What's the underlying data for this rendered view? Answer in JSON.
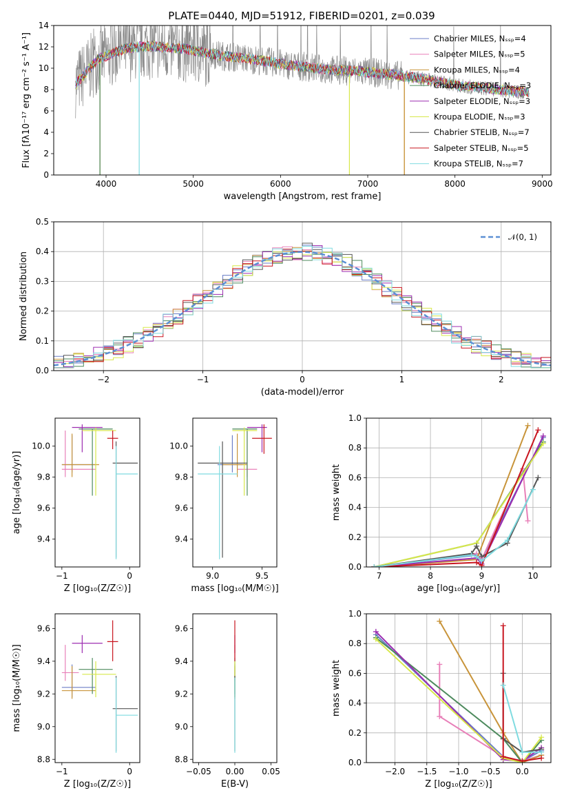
{
  "figure": {
    "title": "PLATE=0440, MJD=51912, FIBERID=0201, z=0.039"
  },
  "chart_data": [
    {
      "id": "spectrum",
      "type": "line",
      "xlabel": "wavelength [Angstrom, rest frame]",
      "ylabel": "Flux [fλ10⁻¹⁷ erg cm⁻² s⁻¹ A⁻¹]",
      "xlim": [
        3400,
        9100
      ],
      "ylim": [
        0,
        14
      ],
      "xticks": [
        4000,
        5000,
        6000,
        7000,
        8000,
        9000
      ],
      "yticks": [
        0,
        2,
        4,
        6,
        8,
        10,
        12,
        14
      ],
      "legend_position": "top-right",
      "data_range": [
        3650,
        8850
      ],
      "continuum": {
        "x": [
          3650,
          3900,
          4200,
          4500,
          4900,
          5300,
          5700,
          6100,
          6500,
          6900,
          7300,
          7700,
          8100,
          8500,
          8850
        ],
        "y": [
          8.5,
          10.8,
          11.8,
          12.1,
          11.8,
          11.2,
          10.8,
          10.3,
          9.9,
          9.7,
          9.4,
          8.9,
          8.3,
          8.0,
          7.7
        ]
      },
      "series": [
        {
          "name": "Chabrier MILES, N_SSP=4",
          "color": "#6b7ec7"
        },
        {
          "name": "Salpeter MILES, N_SSP=5",
          "color": "#e87fb8"
        },
        {
          "name": "Kroupa MILES, N_SSP=4",
          "color": "#c8943a"
        },
        {
          "name": "Chabrier ELODIE, N_SSP=3",
          "color": "#4d8a5d"
        },
        {
          "name": "Salpeter ELODIE, N_SSP=3",
          "color": "#9c2cb0"
        },
        {
          "name": "Kroupa ELODIE, N_SSP=3",
          "color": "#d7e84a"
        },
        {
          "name": "Chabrier STELIB, N_SSP=7",
          "color": "#555555"
        },
        {
          "name": "Salpeter STELIB, N_SSP=5",
          "color": "#c8141e"
        },
        {
          "name": "Kroupa STELIB, N_SSP=7",
          "color": "#7fdbe0"
        }
      ],
      "data_color": "#8a8a8a"
    },
    {
      "id": "residual-histogram",
      "type": "bar",
      "xlabel": "(data-model)/error",
      "ylabel": "Normed distribution",
      "xlim": [
        -2.5,
        2.5
      ],
      "ylim": [
        0,
        0.5
      ],
      "xticks": [
        -2,
        -1,
        0,
        1,
        2
      ],
      "yticks": [
        0.0,
        0.1,
        0.2,
        0.3,
        0.4,
        0.5
      ],
      "bin_width": 0.1,
      "bins_start": -2.5,
      "reference_curve": {
        "name": "N(0, 1)",
        "label_text": "𝒩(0, 1)",
        "mean": 0,
        "sigma": 1,
        "color": "#5b8fd4"
      },
      "legend_position": "top-right"
    },
    {
      "id": "age-vs-Z",
      "type": "scatter",
      "xlabel": "Z [log₁₀(Z/Z☉)]",
      "ylabel": "age  [log₁₀(age/yr)]",
      "xlim": [
        -1.1,
        0.15
      ],
      "ylim": [
        9.22,
        10.18
      ],
      "xticks": [
        -1,
        0
      ],
      "yticks": [
        9.4,
        9.6,
        9.8,
        10.0
      ],
      "points": [
        {
          "series": 0,
          "x": -0.85,
          "y": 9.88,
          "xlo": -1.0,
          "xhi": -0.5,
          "ylo": 9.83,
          "yhi": 10.07
        },
        {
          "series": 1,
          "x": -0.95,
          "y": 9.85,
          "xlo": -1.0,
          "xhi": -0.5,
          "ylo": 9.8,
          "yhi": 10.1
        },
        {
          "series": 2,
          "x": -0.85,
          "y": 9.88,
          "xlo": -1.0,
          "xhi": -0.45,
          "ylo": 9.8,
          "yhi": 10.08
        },
        {
          "series": 3,
          "x": -0.55,
          "y": 10.11,
          "xlo": -0.75,
          "xhi": -0.25,
          "ylo": 9.68,
          "yhi": 10.11
        },
        {
          "series": 4,
          "x": -0.7,
          "y": 10.12,
          "xlo": -0.85,
          "xhi": -0.4,
          "ylo": 9.96,
          "yhi": 10.14
        },
        {
          "series": 5,
          "x": -0.5,
          "y": 10.1,
          "xlo": -0.7,
          "xhi": -0.2,
          "ylo": 9.68,
          "yhi": 10.12
        },
        {
          "series": 6,
          "x": -0.2,
          "y": 9.89,
          "xlo": -0.25,
          "xhi": 0.12,
          "ylo": 9.28,
          "yhi": 10.03
        },
        {
          "series": 7,
          "x": -0.25,
          "y": 10.05,
          "xlo": -0.33,
          "xhi": -0.17,
          "ylo": 9.98,
          "yhi": 10.1
        },
        {
          "series": 8,
          "x": -0.2,
          "y": 9.82,
          "xlo": -0.2,
          "xhi": 0.12,
          "ylo": 9.27,
          "yhi": 10.0
        }
      ]
    },
    {
      "id": "age-vs-mass",
      "type": "scatter",
      "xlabel": "mass [log₁₀(M/M☉)]",
      "ylabel": "",
      "xlim": [
        8.8,
        9.65
      ],
      "ylim": [
        9.22,
        10.18
      ],
      "xticks": [
        9.0,
        9.5
      ],
      "yticks": [
        9.4,
        9.6,
        9.8,
        10.0
      ],
      "points": [
        {
          "series": 0,
          "x": 9.2,
          "y": 9.88,
          "xlo": 9.05,
          "xhi": 9.3,
          "ylo": 9.83,
          "yhi": 10.07
        },
        {
          "series": 1,
          "x": 9.35,
          "y": 9.85,
          "xlo": 9.25,
          "xhi": 9.45,
          "ylo": 9.8,
          "yhi": 10.1
        },
        {
          "series": 2,
          "x": 9.25,
          "y": 9.88,
          "xlo": 9.1,
          "xhi": 9.35,
          "ylo": 9.8,
          "yhi": 10.08
        },
        {
          "series": 3,
          "x": 9.35,
          "y": 10.11,
          "xlo": 9.2,
          "xhi": 9.45,
          "ylo": 9.68,
          "yhi": 10.11
        },
        {
          "series": 4,
          "x": 9.5,
          "y": 10.12,
          "xlo": 9.35,
          "xhi": 9.55,
          "ylo": 9.96,
          "yhi": 10.14
        },
        {
          "series": 5,
          "x": 9.32,
          "y": 10.1,
          "xlo": 9.2,
          "xhi": 9.45,
          "ylo": 9.68,
          "yhi": 10.12
        },
        {
          "series": 6,
          "x": 9.1,
          "y": 9.89,
          "xlo": 8.85,
          "xhi": 9.35,
          "ylo": 9.28,
          "yhi": 10.03
        },
        {
          "series": 7,
          "x": 9.52,
          "y": 10.05,
          "xlo": 9.4,
          "xhi": 9.6,
          "ylo": 9.95,
          "yhi": 10.14
        },
        {
          "series": 8,
          "x": 9.07,
          "y": 9.82,
          "xlo": 8.85,
          "xhi": 9.25,
          "ylo": 9.27,
          "yhi": 10.0
        }
      ]
    },
    {
      "id": "weight-vs-age",
      "type": "line",
      "xlabel": "age  [log₁₀(age/yr)]",
      "ylabel": "mass weight",
      "xlim": [
        6.75,
        10.35
      ],
      "ylim": [
        0,
        1.0
      ],
      "xticks": [
        7,
        8,
        9,
        10
      ],
      "yticks": [
        0.0,
        0.2,
        0.4,
        0.6,
        0.8,
        1.0
      ],
      "series": [
        {
          "series": 0,
          "x": [
            6.9,
            8.9,
            9.0,
            10.2
          ],
          "y": [
            0.0,
            0.08,
            0.05,
            0.87
          ]
        },
        {
          "series": 1,
          "x": [
            6.9,
            8.9,
            9.0,
            9.8,
            9.9
          ],
          "y": [
            0.0,
            0.09,
            0.05,
            0.66,
            0.31
          ]
        },
        {
          "series": 2,
          "x": [
            6.9,
            8.9,
            9.9
          ],
          "y": [
            0.0,
            0.05,
            0.95
          ]
        },
        {
          "series": 3,
          "x": [
            6.9,
            8.9,
            10.2
          ],
          "y": [
            0.0,
            0.16,
            0.84
          ]
        },
        {
          "series": 4,
          "x": [
            6.9,
            8.9,
            9.0,
            10.2
          ],
          "y": [
            0.0,
            0.06,
            0.02,
            0.88
          ]
        },
        {
          "series": 5,
          "x": [
            6.9,
            8.9,
            10.2
          ],
          "y": [
            0.0,
            0.16,
            0.83
          ]
        },
        {
          "series": 6,
          "x": [
            6.9,
            8.8,
            8.9,
            9.0,
            9.5,
            10.1
          ],
          "y": [
            0.0,
            0.09,
            0.14,
            0.07,
            0.16,
            0.6
          ]
        },
        {
          "series": 7,
          "x": [
            6.9,
            8.9,
            9.0,
            10.1
          ],
          "y": [
            0.0,
            0.03,
            0.01,
            0.92
          ]
        },
        {
          "series": 8,
          "x": [
            6.9,
            8.8,
            8.9,
            9.0,
            9.5,
            10.0
          ],
          "y": [
            0.0,
            0.08,
            0.07,
            0.04,
            0.18,
            0.52
          ]
        }
      ]
    },
    {
      "id": "mass-vs-Z",
      "type": "scatter",
      "xlabel": "Z [log₁₀(Z/Z☉)]",
      "ylabel": "mass [log₁₀(M/M☉)]",
      "xlim": [
        -1.1,
        0.15
      ],
      "ylim": [
        8.78,
        9.69
      ],
      "xticks": [
        -1,
        0
      ],
      "yticks": [
        8.8,
        9.0,
        9.2,
        9.4,
        9.6
      ],
      "points": [
        {
          "series": 0,
          "x": -0.85,
          "y": 9.24,
          "xlo": -1.0,
          "xhi": -0.5,
          "ylo": 9.18,
          "yhi": 9.38
        },
        {
          "series": 1,
          "x": -0.95,
          "y": 9.33,
          "xlo": -1.0,
          "xhi": -0.75,
          "ylo": 9.28,
          "yhi": 9.5
        },
        {
          "series": 2,
          "x": -0.85,
          "y": 9.22,
          "xlo": -1.0,
          "xhi": -0.5,
          "ylo": 9.17,
          "yhi": 9.37
        },
        {
          "series": 3,
          "x": -0.55,
          "y": 9.35,
          "xlo": -0.75,
          "xhi": -0.25,
          "ylo": 9.2,
          "yhi": 9.42
        },
        {
          "series": 4,
          "x": -0.7,
          "y": 9.51,
          "xlo": -0.85,
          "xhi": -0.4,
          "ylo": 9.45,
          "yhi": 9.56
        },
        {
          "series": 5,
          "x": -0.5,
          "y": 9.32,
          "xlo": -0.7,
          "xhi": -0.2,
          "ylo": 9.18,
          "yhi": 9.4
        },
        {
          "series": 6,
          "x": -0.2,
          "y": 9.11,
          "xlo": -0.25,
          "xhi": 0.12,
          "ylo": 8.85,
          "yhi": 9.31
        },
        {
          "series": 7,
          "x": -0.25,
          "y": 9.52,
          "xlo": -0.33,
          "xhi": -0.17,
          "ylo": 9.4,
          "yhi": 9.65
        },
        {
          "series": 8,
          "x": -0.2,
          "y": 9.07,
          "xlo": -0.2,
          "xhi": 0.12,
          "ylo": 8.84,
          "yhi": 9.3
        }
      ]
    },
    {
      "id": "mass-vs-EBV",
      "type": "scatter",
      "xlabel": "E(B-V)",
      "ylabel": "",
      "xlim": [
        -0.058,
        0.058
      ],
      "ylim": [
        8.78,
        9.69
      ],
      "xticks": [
        -0.05,
        0.0,
        0.05
      ],
      "xticklabels": [
        "−0.05",
        "0.00",
        "0.05"
      ],
      "yticks": [
        8.8,
        9.0,
        9.2,
        9.4,
        9.6
      ],
      "points": [
        {
          "series": 0,
          "x": 0.0,
          "y": 9.24,
          "ylo": 9.18,
          "yhi": 9.38
        },
        {
          "series": 1,
          "x": 0.0,
          "y": 9.33,
          "ylo": 9.28,
          "yhi": 9.5
        },
        {
          "series": 2,
          "x": 0.0,
          "y": 9.22,
          "ylo": 9.17,
          "yhi": 9.37
        },
        {
          "series": 3,
          "x": 0.0,
          "y": 9.35,
          "ylo": 9.2,
          "yhi": 9.42
        },
        {
          "series": 4,
          "x": 0.0,
          "y": 9.51,
          "ylo": 9.45,
          "yhi": 9.56
        },
        {
          "series": 5,
          "x": 0.0,
          "y": 9.32,
          "ylo": 9.18,
          "yhi": 9.4
        },
        {
          "series": 6,
          "x": 0.0,
          "y": 9.11,
          "ylo": 8.85,
          "yhi": 9.31
        },
        {
          "series": 7,
          "x": 0.0,
          "y": 9.52,
          "ylo": 9.4,
          "yhi": 9.65
        },
        {
          "series": 8,
          "x": 0.0,
          "y": 9.07,
          "ylo": 8.84,
          "yhi": 9.3
        }
      ]
    },
    {
      "id": "weight-vs-Z",
      "type": "line",
      "xlabel": "Z [log₁₀(Z/Z☉)]",
      "ylabel": "mass weight",
      "xlim": [
        -2.45,
        0.45
      ],
      "ylim": [
        0,
        1.0
      ],
      "xticks": [
        -2.0,
        -1.5,
        -1.0,
        -0.5,
        0.0
      ],
      "xticklabels": [
        "−2.0",
        "−1.5",
        "−1.0",
        "−0.5",
        "0.0"
      ],
      "yticks": [
        0.0,
        0.2,
        0.4,
        0.6,
        0.8,
        1.0
      ],
      "series": [
        {
          "series": 0,
          "x": [
            -2.3,
            -0.3,
            0.0,
            0.3
          ],
          "y": [
            0.86,
            0.04,
            0.01,
            0.08
          ]
        },
        {
          "series": 1,
          "x": [
            -1.3,
            -1.3,
            -0.3,
            0.0,
            0.3
          ],
          "y": [
            0.66,
            0.31,
            0.04,
            0.01,
            0.05
          ]
        },
        {
          "series": 2,
          "x": [
            -1.3,
            -0.3,
            0.0,
            0.3
          ],
          "y": [
            0.95,
            0.2,
            0.0,
            0.05
          ]
        },
        {
          "series": 3,
          "x": [
            -2.3,
            -0.3,
            0.0,
            0.3
          ],
          "y": [
            0.84,
            0.16,
            0.0,
            0.15
          ]
        },
        {
          "series": 4,
          "x": [
            -2.3,
            -0.3,
            0.0,
            0.3
          ],
          "y": [
            0.88,
            0.02,
            0.01,
            0.1
          ]
        },
        {
          "series": 5,
          "x": [
            -2.3,
            -0.3,
            0.0,
            0.3
          ],
          "y": [
            0.83,
            0.03,
            0.0,
            0.17
          ]
        },
        {
          "series": 6,
          "x": [
            -0.3,
            -0.3,
            0.0,
            0.3
          ],
          "y": [
            0.6,
            0.16,
            0.07,
            0.09
          ]
        },
        {
          "series": 7,
          "x": [
            -0.3,
            -0.3,
            0.0,
            0.3
          ],
          "y": [
            0.92,
            0.04,
            0.01,
            0.03
          ]
        },
        {
          "series": 8,
          "x": [
            -0.3,
            0.0,
            0.3
          ],
          "y": [
            0.52,
            0.07,
            0.07
          ]
        }
      ]
    }
  ]
}
